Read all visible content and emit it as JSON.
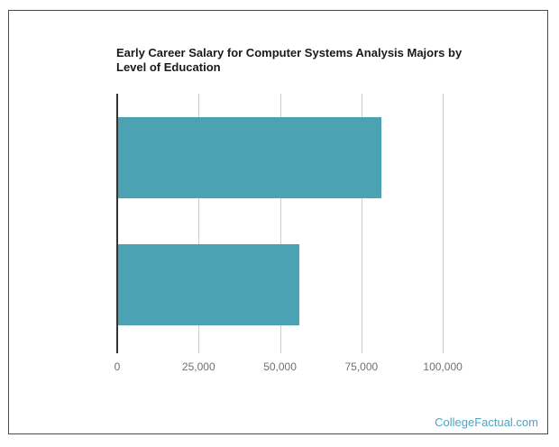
{
  "page": {
    "background": "#ffffff",
    "card_border_color": "#4a4a4a"
  },
  "watermark": {
    "text": "CollegeFactual.com",
    "color": "#4da5c4"
  },
  "chart_data": {
    "type": "bar",
    "orientation": "horizontal",
    "title": "Early Career Salary for Computer Systems Analysis Majors by Level of Education",
    "title_lines": [
      "Early Career Salary for Computer Systems Analysis Majors by",
      "Level of Education"
    ],
    "title_color": "#1a1a1a",
    "categories": [
      "",
      ""
    ],
    "values": [
      81000,
      56000
    ],
    "xlabel": "",
    "ylabel": "",
    "x_ticks": {
      "values": [
        0,
        25000,
        50000,
        75000,
        100000
      ],
      "labels": [
        "0",
        "25,000",
        "50,000",
        "75,000",
        "100,000"
      ]
    },
    "xlim": [
      0,
      108000
    ],
    "grid": "vertical-only",
    "legend": "none",
    "bar_color": "#4aa2b2",
    "axis_color": "#333333",
    "gridline_color": "#cccccc",
    "tick_label_color": "#6f6f6f"
  }
}
